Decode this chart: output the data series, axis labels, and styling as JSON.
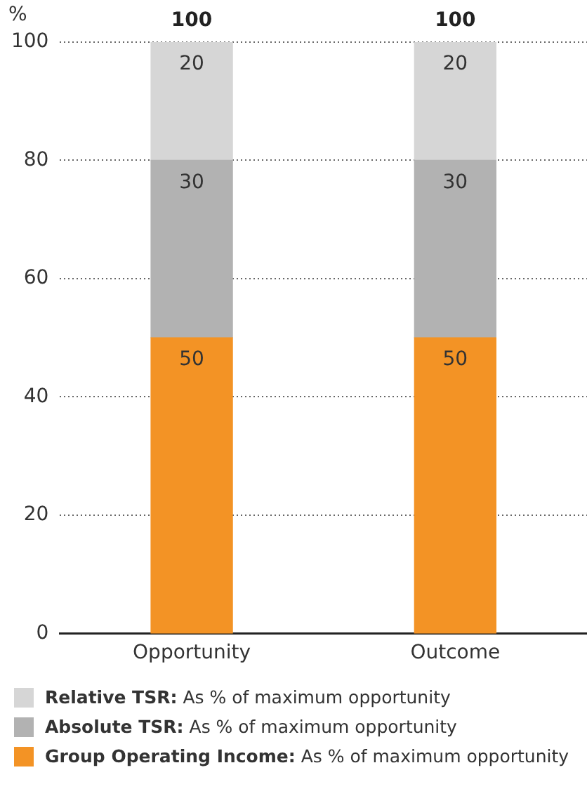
{
  "chart_data": {
    "type": "bar",
    "stacked": true,
    "ylabel": "%",
    "categories": [
      "Opportunity",
      "Outcome"
    ],
    "series": [
      {
        "name": "Group Operating Income: As % of maximum opportunity",
        "color": "#f39325",
        "values": [
          50,
          50
        ]
      },
      {
        "name": "Absolute TSR: As % of maximum opportunity",
        "color": "#b2b2b2",
        "values": [
          30,
          30
        ]
      },
      {
        "name": "Relative TSR: As % of maximum opportunity",
        "color": "#d6d6d6",
        "values": [
          20,
          20
        ]
      }
    ],
    "ylim": [
      0,
      100
    ],
    "yticks": [
      0,
      20,
      40,
      60,
      80,
      100
    ],
    "grid": "y",
    "data_labels": true,
    "totals": [
      "100",
      "100"
    ],
    "legend": "bottom"
  }
}
